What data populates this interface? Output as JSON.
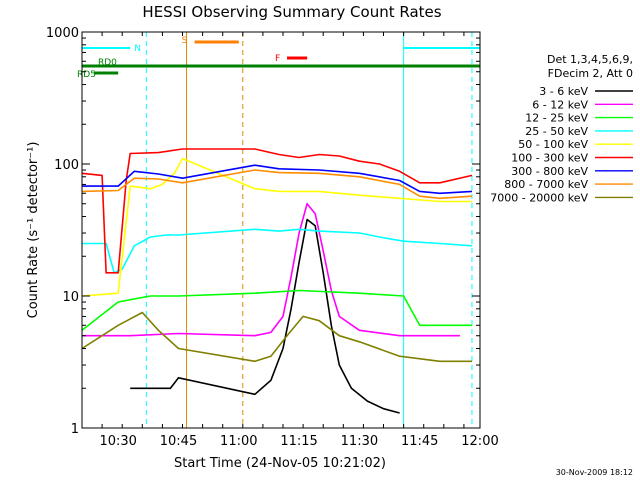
{
  "chart_data": {
    "type": "line",
    "title": "HESSI Observing Summary Count Rates",
    "xlabel": "Start Time (24-Nov-05 10:21:02)",
    "ylabel": "Count Rate (s⁻¹ detector⁻¹)",
    "yscale": "log",
    "ylim": [
      1,
      1000
    ],
    "xlim": [
      "10:21",
      "12:00"
    ],
    "xticks": [
      "10:30",
      "10:45",
      "11:00",
      "11:15",
      "11:30",
      "11:45",
      "12:00"
    ],
    "yticks": [
      "1",
      "10",
      "100",
      "1000"
    ],
    "grid": false,
    "legend_header": [
      "Det 1,3,4,5,6,9,",
      "FDecim 2, Att 0"
    ],
    "legend_placement": "right",
    "footer_date": "30-Nov-2009 18:12",
    "flags": [
      {
        "label": "N",
        "color": "#00ffff",
        "segments": [
          [
            "10:21",
            "10:33"
          ],
          [
            "11:41",
            "12:00"
          ]
        ]
      },
      {
        "label": "S",
        "color": "#ff8000",
        "segments": [
          [
            "10:49",
            "11:00"
          ]
        ]
      },
      {
        "label": "F",
        "color": "#ff0000",
        "segments": [
          [
            "11:12",
            "11:17"
          ]
        ]
      },
      {
        "label": "RD0",
        "color": "#008000",
        "segments": [
          [
            "10:21",
            "12:00"
          ]
        ]
      },
      {
        "label": "RD5",
        "color": "#008000",
        "segments": [
          [
            "10:24",
            "10:30"
          ]
        ]
      }
    ],
    "vlines": [
      {
        "time": "10:21",
        "color": "#00ffff",
        "style": "solid"
      },
      {
        "time": "10:37",
        "color": "#00ffff",
        "style": "dashed"
      },
      {
        "time": "10:47",
        "color": "#e08a00",
        "style": "solid"
      },
      {
        "time": "11:01",
        "color": "#e08a00",
        "style": "dashed"
      },
      {
        "time": "11:41",
        "color": "#00ffff",
        "style": "solid"
      },
      {
        "time": "11:58",
        "color": "#00ffff",
        "style": "dashed"
      }
    ],
    "series": [
      {
        "name": "3 - 6 keV",
        "color": "#000000",
        "points": [
          [
            "10:33",
            2
          ],
          [
            "10:38",
            2
          ],
          [
            "10:43",
            2
          ],
          [
            "10:45",
            2.4
          ],
          [
            "11:04",
            1.8
          ],
          [
            "11:08",
            2.3
          ],
          [
            "11:11",
            4
          ],
          [
            "11:13",
            8
          ],
          [
            "11:15",
            18
          ],
          [
            "11:17",
            38
          ],
          [
            "11:19",
            34
          ],
          [
            "11:21",
            15
          ],
          [
            "11:23",
            6
          ],
          [
            "11:25",
            3
          ],
          [
            "11:28",
            2
          ],
          [
            "11:32",
            1.6
          ],
          [
            "11:36",
            1.4
          ],
          [
            "11:40",
            1.3
          ]
        ]
      },
      {
        "name": "6 - 12 keV",
        "color": "#ff00ff",
        "points": [
          [
            "10:21",
            5
          ],
          [
            "10:30",
            5
          ],
          [
            "10:33",
            5
          ],
          [
            "10:45",
            5.2
          ],
          [
            "11:04",
            5
          ],
          [
            "11:08",
            5.3
          ],
          [
            "11:11",
            7
          ],
          [
            "11:13",
            14
          ],
          [
            "11:15",
            30
          ],
          [
            "11:17",
            50
          ],
          [
            "11:19",
            42
          ],
          [
            "11:21",
            22
          ],
          [
            "11:23",
            11
          ],
          [
            "11:25",
            7
          ],
          [
            "11:30",
            5.5
          ],
          [
            "11:40",
            5
          ],
          [
            "11:55",
            5
          ]
        ]
      },
      {
        "name": "12 - 25 keV",
        "color": "#00ff00",
        "points": [
          [
            "10:21",
            5.5
          ],
          [
            "10:30",
            9
          ],
          [
            "10:38",
            10
          ],
          [
            "10:45",
            10
          ],
          [
            "11:04",
            10.5
          ],
          [
            "11:15",
            11
          ],
          [
            "11:30",
            10.5
          ],
          [
            "11:41",
            10
          ],
          [
            "11:45",
            6
          ],
          [
            "11:58",
            6
          ]
        ]
      },
      {
        "name": "25 - 50 keV",
        "color": "#00ffff",
        "points": [
          [
            "10:21",
            25
          ],
          [
            "10:27",
            25
          ],
          [
            "10:29",
            15
          ],
          [
            "10:31",
            16
          ],
          [
            "10:34",
            24
          ],
          [
            "10:38",
            28
          ],
          [
            "10:42",
            29
          ],
          [
            "10:45",
            29
          ],
          [
            "11:04",
            32
          ],
          [
            "11:10",
            31
          ],
          [
            "11:15",
            32
          ],
          [
            "11:20",
            31
          ],
          [
            "11:30",
            30
          ],
          [
            "11:35",
            28
          ],
          [
            "11:41",
            26
          ],
          [
            "11:50",
            25
          ],
          [
            "11:58",
            24
          ]
        ]
      },
      {
        "name": "50 - 100 keV",
        "color": "#ffff00",
        "points": [
          [
            "10:21",
            10
          ],
          [
            "10:30",
            10.5
          ],
          [
            "10:33",
            68
          ],
          [
            "10:38",
            65
          ],
          [
            "10:41",
            70
          ],
          [
            "10:44",
            85
          ],
          [
            "10:46",
            110
          ],
          [
            "11:04",
            65
          ],
          [
            "11:10",
            62
          ],
          [
            "11:20",
            62
          ],
          [
            "11:30",
            58
          ],
          [
            "11:40",
            55
          ],
          [
            "11:50",
            52
          ],
          [
            "11:58",
            52
          ]
        ]
      },
      {
        "name": "100 - 300 keV",
        "color": "#ff0000",
        "points": [
          [
            "10:21",
            85
          ],
          [
            "10:26",
            82
          ],
          [
            "10:27",
            15
          ],
          [
            "10:30",
            15
          ],
          [
            "10:32",
            75
          ],
          [
            "10:33",
            120
          ],
          [
            "10:40",
            122
          ],
          [
            "10:46",
            130
          ],
          [
            "11:04",
            130
          ],
          [
            "11:10",
            118
          ],
          [
            "11:15",
            112
          ],
          [
            "11:20",
            118
          ],
          [
            "11:25",
            115
          ],
          [
            "11:30",
            105
          ],
          [
            "11:35",
            100
          ],
          [
            "11:40",
            88
          ],
          [
            "11:45",
            72
          ],
          [
            "11:50",
            72
          ],
          [
            "11:58",
            82
          ]
        ]
      },
      {
        "name": "300 - 800 keV",
        "color": "#0000ff",
        "points": [
          [
            "10:21",
            68
          ],
          [
            "10:30",
            68
          ],
          [
            "10:34",
            88
          ],
          [
            "10:40",
            84
          ],
          [
            "10:46",
            78
          ],
          [
            "11:04",
            98
          ],
          [
            "11:10",
            92
          ],
          [
            "11:20",
            90
          ],
          [
            "11:30",
            85
          ],
          [
            "11:40",
            75
          ],
          [
            "11:45",
            62
          ],
          [
            "11:50",
            60
          ],
          [
            "11:58",
            62
          ]
        ]
      },
      {
        "name": "800 - 7000 keV",
        "color": "#ff8c00",
        "points": [
          [
            "10:21",
            62
          ],
          [
            "10:30",
            63
          ],
          [
            "10:34",
            78
          ],
          [
            "10:40",
            77
          ],
          [
            "10:46",
            72
          ],
          [
            "11:04",
            90
          ],
          [
            "11:10",
            86
          ],
          [
            "11:20",
            85
          ],
          [
            "11:30",
            80
          ],
          [
            "11:40",
            70
          ],
          [
            "11:45",
            57
          ],
          [
            "11:50",
            55
          ],
          [
            "11:58",
            57
          ]
        ]
      },
      {
        "name": "7000 - 20000 keV",
        "color": "#808000",
        "points": [
          [
            "10:21",
            4
          ],
          [
            "10:30",
            6
          ],
          [
            "10:36",
            7.5
          ],
          [
            "10:40",
            5.5
          ],
          [
            "10:45",
            4
          ],
          [
            "11:04",
            3.2
          ],
          [
            "11:08",
            3.5
          ],
          [
            "11:12",
            5
          ],
          [
            "11:16",
            7
          ],
          [
            "11:20",
            6.5
          ],
          [
            "11:25",
            5
          ],
          [
            "11:30",
            4.5
          ],
          [
            "11:40",
            3.5
          ],
          [
            "11:50",
            3.2
          ],
          [
            "11:58",
            3.2
          ]
        ]
      }
    ]
  }
}
